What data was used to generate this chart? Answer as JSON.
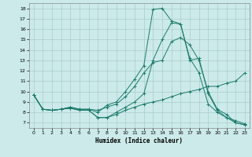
{
  "xlabel": "Humidex (Indice chaleur)",
  "xlim": [
    -0.5,
    23.5
  ],
  "ylim": [
    6.5,
    18.5
  ],
  "yticks": [
    7,
    8,
    9,
    10,
    11,
    12,
    13,
    14,
    15,
    16,
    17,
    18
  ],
  "xticks": [
    0,
    1,
    2,
    3,
    4,
    5,
    6,
    7,
    8,
    9,
    10,
    11,
    12,
    13,
    14,
    15,
    16,
    17,
    18,
    19,
    20,
    21,
    22,
    23
  ],
  "bg_color": "#cceaea",
  "grid_color": "#aacccc",
  "line_color": "#1a7a6a",
  "series": [
    [
      9.7,
      8.3,
      8.2,
      8.3,
      8.4,
      8.2,
      8.2,
      7.5,
      7.5,
      7.8,
      8.2,
      8.5,
      8.8,
      9.0,
      9.2,
      9.5,
      9.8,
      10.0,
      10.2,
      10.5,
      10.5,
      10.8,
      11.0,
      11.8
    ],
    [
      9.7,
      8.3,
      8.2,
      8.3,
      8.4,
      8.2,
      8.2,
      7.5,
      7.5,
      8.0,
      8.5,
      9.0,
      9.8,
      13.0,
      15.0,
      16.6,
      16.5,
      13.0,
      13.2,
      9.8,
      8.2,
      7.5,
      7.2,
      6.9
    ],
    [
      9.7,
      8.3,
      8.2,
      8.3,
      8.5,
      8.3,
      8.3,
      8.2,
      8.5,
      8.8,
      9.5,
      10.5,
      11.8,
      12.8,
      13.0,
      14.8,
      15.2,
      14.5,
      13.0,
      10.0,
      8.3,
      7.8,
      7.0,
      6.8
    ],
    [
      9.7,
      8.3,
      8.2,
      8.3,
      8.5,
      8.3,
      8.3,
      8.0,
      8.7,
      9.0,
      10.0,
      11.2,
      12.5,
      17.9,
      18.0,
      16.8,
      16.5,
      13.2,
      11.8,
      8.8,
      8.0,
      7.5,
      7.0,
      6.8
    ]
  ]
}
